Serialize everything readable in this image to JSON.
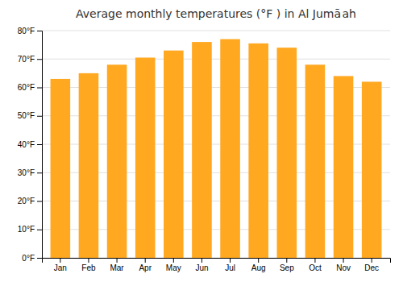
{
  "chart_data": {
    "type": "bar",
    "title": "Average monthly temperatures (°F ) in Al Jumā ah",
    "categories": [
      "Jan",
      "Feb",
      "Mar",
      "Apr",
      "May",
      "Jun",
      "Jul",
      "Aug",
      "Sep",
      "Oct",
      "Nov",
      "Dec"
    ],
    "values": [
      63,
      65,
      68,
      70.5,
      73,
      76,
      77,
      75.5,
      74,
      68,
      64,
      62
    ],
    "color": "#FFA820",
    "ylim": [
      0,
      80
    ],
    "yticks": [
      {
        "value": 0,
        "label": "0°F"
      },
      {
        "value": 10,
        "label": "10°F"
      },
      {
        "value": 20,
        "label": "20°F"
      },
      {
        "value": 30,
        "label": "30°F"
      },
      {
        "value": 40,
        "label": "40°F"
      },
      {
        "value": 50,
        "label": "50°F"
      },
      {
        "value": 60,
        "label": "60°F"
      },
      {
        "value": 70,
        "label": "70°F"
      },
      {
        "value": 80,
        "label": "80°F"
      }
    ],
    "grid": true
  }
}
